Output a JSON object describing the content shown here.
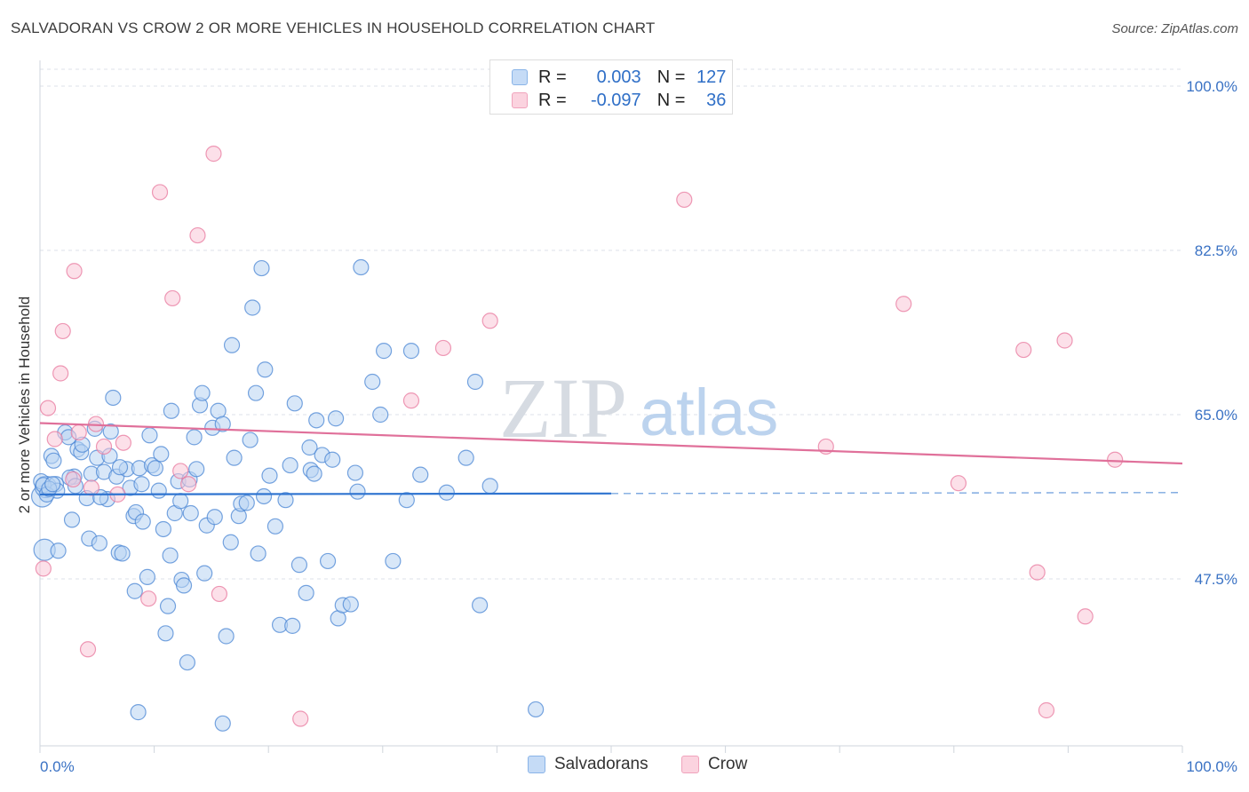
{
  "title": "SALVADORAN VS CROW 2 OR MORE VEHICLES IN HOUSEHOLD CORRELATION CHART",
  "source": "Source: ZipAtlas.com",
  "watermark": {
    "zip": "ZIP",
    "atlas": "atlas"
  },
  "legend_stats": [
    {
      "r_label": "R =",
      "r_value": "0.003",
      "n_label": "N =",
      "n_value": "127",
      "color": "#8ab4e8",
      "fill": "#c5dbf6"
    },
    {
      "r_label": "R =",
      "r_value": "-0.097",
      "n_label": "N =",
      "n_value": "36",
      "color": "#f0a3bc",
      "fill": "#fbd3df"
    }
  ],
  "chart_data": {
    "type": "scatter",
    "title": "SALVADORAN VS CROW 2 OR MORE VEHICLES IN HOUSEHOLD CORRELATION CHART",
    "xlabel": "",
    "ylabel": "2 or more Vehicles in Household",
    "xlim": [
      0,
      100
    ],
    "ylim": [
      30,
      102
    ],
    "x_tick_labels": [
      "0.0%",
      "100.0%"
    ],
    "y_tick_labels": [
      "100.0%",
      "82.5%",
      "65.0%",
      "47.5%"
    ],
    "y_tick_values": [
      100,
      82.5,
      65,
      47.5
    ],
    "grid": true,
    "legend": "bottom-center",
    "series": [
      {
        "name": "Salvadorans",
        "color": "#4a86d4",
        "fill": "#b8d3f3",
        "trend": {
          "x0": 0,
          "y0": 56.5,
          "x1": 50,
          "y1": 56.6,
          "dash_x1": 100,
          "dash_y1": 56.7
        },
        "points": [
          [
            0.2,
            56.3
          ],
          [
            0.4,
            50.6
          ],
          [
            0.5,
            57.3
          ],
          [
            1.0,
            60.6
          ],
          [
            1.2,
            60.1
          ],
          [
            1.4,
            57.6
          ],
          [
            1.5,
            56.9
          ],
          [
            1.6,
            50.5
          ],
          [
            2.2,
            63.1
          ],
          [
            2.5,
            62.6
          ],
          [
            2.8,
            53.8
          ],
          [
            3.0,
            58.4
          ],
          [
            3.3,
            61.3
          ],
          [
            3.6,
            61.0
          ],
          [
            3.7,
            61.8
          ],
          [
            4.1,
            56.1
          ],
          [
            4.3,
            51.8
          ],
          [
            4.5,
            58.7
          ],
          [
            4.8,
            63.5
          ],
          [
            5.0,
            60.4
          ],
          [
            5.2,
            51.3
          ],
          [
            5.6,
            58.9
          ],
          [
            5.9,
            56.0
          ],
          [
            6.1,
            60.6
          ],
          [
            6.2,
            63.2
          ],
          [
            6.4,
            66.8
          ],
          [
            6.7,
            58.4
          ],
          [
            6.9,
            50.3
          ],
          [
            7.2,
            50.2
          ],
          [
            7.6,
            59.2
          ],
          [
            7.9,
            57.2
          ],
          [
            8.2,
            54.2
          ],
          [
            8.3,
            46.2
          ],
          [
            8.4,
            54.6
          ],
          [
            8.6,
            33.3
          ],
          [
            8.7,
            59.3
          ],
          [
            9.0,
            53.6
          ],
          [
            9.4,
            47.7
          ],
          [
            9.6,
            62.8
          ],
          [
            9.8,
            59.6
          ],
          [
            10.1,
            59.3
          ],
          [
            10.4,
            56.9
          ],
          [
            10.6,
            60.8
          ],
          [
            10.8,
            52.8
          ],
          [
            11.0,
            41.7
          ],
          [
            11.2,
            44.6
          ],
          [
            11.4,
            50.0
          ],
          [
            11.5,
            65.4
          ],
          [
            11.8,
            54.5
          ],
          [
            12.1,
            57.9
          ],
          [
            12.3,
            55.8
          ],
          [
            12.4,
            47.4
          ],
          [
            12.6,
            46.8
          ],
          [
            12.9,
            38.6
          ],
          [
            13.1,
            58.1
          ],
          [
            13.2,
            54.5
          ],
          [
            13.5,
            62.6
          ],
          [
            14.0,
            66.0
          ],
          [
            14.2,
            67.3
          ],
          [
            14.4,
            48.1
          ],
          [
            14.6,
            53.2
          ],
          [
            15.1,
            63.6
          ],
          [
            15.3,
            54.1
          ],
          [
            15.6,
            65.4
          ],
          [
            16.0,
            64.0
          ],
          [
            16.3,
            41.4
          ],
          [
            16.7,
            51.4
          ],
          [
            16.8,
            72.4
          ],
          [
            17.0,
            60.4
          ],
          [
            17.4,
            54.2
          ],
          [
            17.6,
            55.5
          ],
          [
            18.1,
            55.6
          ],
          [
            18.4,
            62.3
          ],
          [
            18.6,
            76.4
          ],
          [
            18.9,
            67.3
          ],
          [
            19.1,
            50.2
          ],
          [
            19.4,
            80.6
          ],
          [
            19.6,
            56.3
          ],
          [
            19.7,
            69.8
          ],
          [
            20.1,
            58.5
          ],
          [
            20.6,
            53.1
          ],
          [
            21.0,
            42.6
          ],
          [
            21.5,
            55.9
          ],
          [
            21.9,
            59.6
          ],
          [
            22.1,
            42.5
          ],
          [
            22.3,
            66.2
          ],
          [
            22.7,
            49.0
          ],
          [
            23.3,
            46.0
          ],
          [
            23.6,
            61.5
          ],
          [
            23.7,
            59.1
          ],
          [
            24.0,
            58.7
          ],
          [
            24.2,
            64.4
          ],
          [
            24.7,
            60.7
          ],
          [
            25.2,
            49.4
          ],
          [
            25.6,
            60.2
          ],
          [
            25.9,
            64.6
          ],
          [
            26.1,
            43.3
          ],
          [
            26.5,
            44.7
          ],
          [
            27.2,
            44.8
          ],
          [
            27.6,
            58.8
          ],
          [
            27.8,
            56.8
          ],
          [
            28.1,
            80.7
          ],
          [
            29.1,
            68.5
          ],
          [
            29.8,
            65.0
          ],
          [
            30.1,
            71.8
          ],
          [
            30.9,
            49.4
          ],
          [
            32.1,
            55.9
          ],
          [
            32.5,
            71.8
          ],
          [
            33.3,
            58.6
          ],
          [
            35.6,
            56.7
          ],
          [
            37.3,
            60.4
          ],
          [
            38.1,
            68.5
          ],
          [
            38.5,
            44.7
          ],
          [
            39.4,
            57.4
          ],
          [
            43.4,
            33.6
          ],
          [
            0.1,
            57.9
          ],
          [
            0.3,
            57.5
          ],
          [
            0.6,
            56.5
          ],
          [
            0.8,
            57.1
          ],
          [
            1.1,
            57.6
          ],
          [
            2.6,
            58.3
          ],
          [
            3.1,
            57.4
          ],
          [
            5.3,
            56.2
          ],
          [
            7.0,
            59.4
          ],
          [
            8.9,
            57.6
          ],
          [
            13.7,
            59.2
          ],
          [
            16.0,
            32.1
          ]
        ]
      },
      {
        "name": "Crow",
        "color": "#e8789e",
        "fill": "#f9c7d7",
        "trend": {
          "x0": 0,
          "y0": 64.1,
          "x1": 100,
          "y1": 59.8
        },
        "points": [
          [
            0.3,
            48.6
          ],
          [
            0.7,
            65.7
          ],
          [
            1.3,
            62.4
          ],
          [
            1.8,
            69.4
          ],
          [
            2.0,
            73.9
          ],
          [
            2.9,
            58.1
          ],
          [
            3.0,
            80.3
          ],
          [
            3.4,
            63.1
          ],
          [
            4.2,
            40.0
          ],
          [
            4.5,
            57.2
          ],
          [
            4.9,
            64.0
          ],
          [
            5.6,
            61.6
          ],
          [
            6.8,
            56.5
          ],
          [
            7.3,
            62.0
          ],
          [
            9.5,
            45.4
          ],
          [
            10.5,
            88.7
          ],
          [
            11.6,
            77.4
          ],
          [
            12.3,
            59.0
          ],
          [
            13.0,
            57.6
          ],
          [
            13.8,
            84.1
          ],
          [
            15.2,
            92.8
          ],
          [
            15.7,
            45.9
          ],
          [
            22.8,
            32.6
          ],
          [
            32.5,
            66.5
          ],
          [
            35.3,
            72.1
          ],
          [
            39.4,
            75.0
          ],
          [
            56.4,
            87.9
          ],
          [
            68.8,
            61.6
          ],
          [
            75.6,
            76.8
          ],
          [
            80.4,
            57.7
          ],
          [
            86.1,
            71.9
          ],
          [
            87.3,
            48.2
          ],
          [
            88.1,
            33.5
          ],
          [
            89.7,
            72.9
          ],
          [
            91.5,
            43.5
          ],
          [
            94.1,
            60.2
          ]
        ]
      }
    ]
  },
  "bottom_legend": [
    {
      "label": "Salvadorans",
      "color": "#8ab4e8",
      "fill": "#c5dbf6"
    },
    {
      "label": "Crow",
      "color": "#f0a3bc",
      "fill": "#fbd3df"
    }
  ]
}
